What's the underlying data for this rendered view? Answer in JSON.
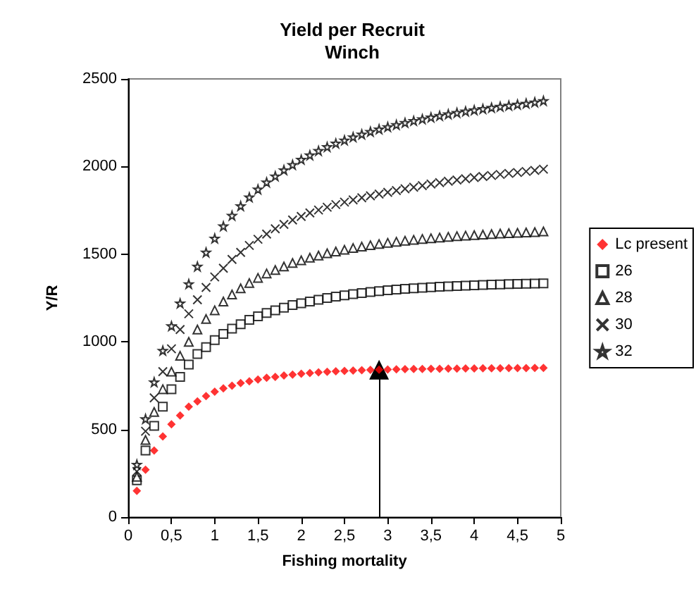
{
  "chart_data": {
    "type": "scatter",
    "title": "Yield per Recruit\nWinch",
    "xlabel": "Fishing mortality",
    "ylabel": "Y/R",
    "x": [
      0.1,
      0.2,
      0.3,
      0.4,
      0.5,
      0.6,
      0.7,
      0.8,
      0.9,
      1.0,
      1.1,
      1.2,
      1.3,
      1.4,
      1.5,
      1.6,
      1.7,
      1.8,
      1.9,
      2.0,
      2.1,
      2.2,
      2.3,
      2.4,
      2.5,
      2.6,
      2.7,
      2.8,
      2.9,
      3.0,
      3.1,
      3.2,
      3.3,
      3.4,
      3.5,
      3.6,
      3.7,
      3.8,
      3.9,
      4.0,
      4.1,
      4.2,
      4.3,
      4.4,
      4.5,
      4.6,
      4.7,
      4.8
    ],
    "series": [
      {
        "name": "Lc present",
        "color": "#ff0000",
        "marker": "diamond",
        "values": [
          150,
          270,
          380,
          460,
          530,
          580,
          630,
          660,
          690,
          715,
          735,
          750,
          765,
          775,
          785,
          795,
          800,
          808,
          813,
          818,
          822,
          826,
          829,
          832,
          834,
          836,
          838,
          840,
          841,
          842,
          843,
          844,
          845,
          845,
          846,
          846,
          847,
          847,
          848,
          848,
          849,
          849,
          849,
          850,
          850,
          850,
          851,
          851
        ]
      },
      {
        "name": "26",
        "color": "#000000",
        "marker": "square",
        "values": [
          210,
          380,
          520,
          630,
          730,
          800,
          870,
          930,
          970,
          1010,
          1045,
          1075,
          1100,
          1125,
          1145,
          1165,
          1180,
          1195,
          1210,
          1220,
          1230,
          1240,
          1250,
          1258,
          1265,
          1272,
          1278,
          1284,
          1289,
          1294,
          1298,
          1302,
          1305,
          1308,
          1311,
          1314,
          1316,
          1318,
          1320,
          1322,
          1324,
          1326,
          1327,
          1329,
          1330,
          1331,
          1332,
          1333
        ]
      },
      {
        "name": "28",
        "color": "#000000",
        "marker": "triangle",
        "values": [
          230,
          440,
          600,
          730,
          830,
          920,
          1000,
          1070,
          1130,
          1180,
          1230,
          1270,
          1305,
          1335,
          1365,
          1390,
          1410,
          1430,
          1450,
          1465,
          1480,
          1492,
          1505,
          1515,
          1525,
          1535,
          1543,
          1551,
          1558,
          1565,
          1571,
          1577,
          1582,
          1587,
          1591,
          1595,
          1599,
          1603,
          1606,
          1609,
          1612,
          1615,
          1618,
          1620,
          1622,
          1624,
          1626,
          1630
        ]
      },
      {
        "name": "30",
        "color": "#000000",
        "marker": "cross",
        "values": [
          260,
          490,
          680,
          830,
          960,
          1070,
          1160,
          1240,
          1310,
          1370,
          1420,
          1470,
          1510,
          1550,
          1585,
          1615,
          1645,
          1670,
          1695,
          1715,
          1735,
          1752,
          1768,
          1783,
          1797,
          1810,
          1822,
          1833,
          1843,
          1853,
          1863,
          1873,
          1882,
          1891,
          1900,
          1908,
          1916,
          1923,
          1930,
          1937,
          1943,
          1949,
          1955,
          1961,
          1966,
          1972,
          1978,
          1985
        ]
      },
      {
        "name": "32",
        "color": "#000000",
        "marker": "star",
        "values": [
          300,
          560,
          770,
          950,
          1090,
          1220,
          1330,
          1430,
          1510,
          1590,
          1660,
          1720,
          1775,
          1825,
          1870,
          1910,
          1945,
          1980,
          2010,
          2040,
          2065,
          2090,
          2112,
          2132,
          2150,
          2168,
          2184,
          2199,
          2213,
          2226,
          2238,
          2250,
          2261,
          2271,
          2281,
          2290,
          2299,
          2307,
          2315,
          2322,
          2329,
          2336,
          2342,
          2348,
          2354,
          2360,
          2367,
          2375
        ]
      }
    ],
    "xlim": [
      0,
      5
    ],
    "xticks": [
      0,
      {
        "value": 0.5,
        "label": "0,5"
      },
      1,
      {
        "value": 1.5,
        "label": "1,5"
      },
      2,
      {
        "value": 2.5,
        "label": "2,5"
      },
      3,
      {
        "value": 3.5,
        "label": "3,5"
      },
      4,
      {
        "value": 4.5,
        "label": "4,5"
      },
      5
    ],
    "ylim": [
      0,
      2500
    ],
    "yticks": [
      0,
      500,
      1000,
      1500,
      2000,
      2500
    ],
    "ref_lines": [
      {
        "axis": "x",
        "value": 2.9,
        "label": null
      }
    ],
    "legend": "right",
    "grid": false
  }
}
